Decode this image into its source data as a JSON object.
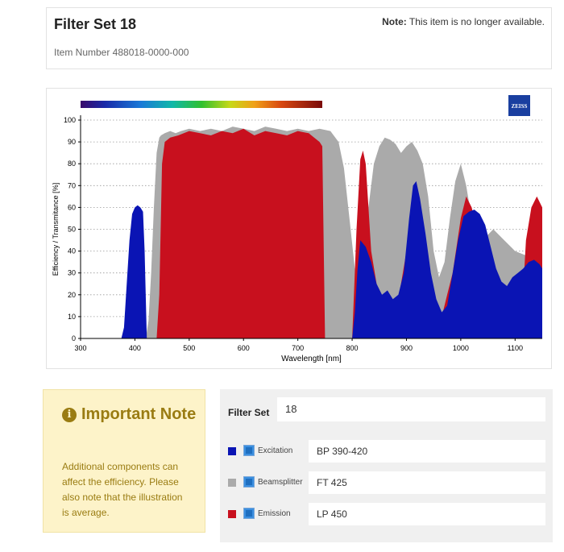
{
  "header": {
    "title": "Filter Set 18",
    "item_number": "Item Number 488018-0000-000",
    "note_label": "Note:",
    "note_text": "This item is no longer available."
  },
  "chart_data": {
    "type": "area",
    "logo": "ZEISS",
    "xlabel": "Wavelength [nm]",
    "ylabel": "Efficiency / Transmitance [%]",
    "xlim": [
      300,
      1150
    ],
    "ylim": [
      0,
      100
    ],
    "x_ticks": [
      300,
      400,
      500,
      600,
      700,
      800,
      900,
      1000,
      1100
    ],
    "y_ticks": [
      0,
      10,
      20,
      30,
      40,
      50,
      60,
      70,
      80,
      90,
      100
    ],
    "grid": "horizontal dotted",
    "spectrum_bar_range": [
      300,
      745
    ],
    "series": [
      {
        "name": "Beamsplitter",
        "color": "#aaaaaa",
        "x": [
          300,
          420,
          425,
          430,
          435,
          440,
          445,
          448,
          455,
          465,
          475,
          485,
          500,
          520,
          540,
          560,
          580,
          600,
          620,
          640,
          660,
          680,
          700,
          720,
          740,
          760,
          775,
          785,
          795,
          805,
          812,
          820,
          830,
          840,
          850,
          860,
          870,
          880,
          890,
          900,
          910,
          920,
          930,
          940,
          950,
          960,
          970,
          980,
          990,
          1000,
          1010,
          1020,
          1040,
          1060,
          1080,
          1100,
          1120,
          1150
        ],
        "y": [
          0,
          0,
          8,
          30,
          60,
          85,
          92,
          93,
          94,
          95,
          94,
          95,
          96,
          95,
          96,
          95,
          97,
          96,
          95,
          97,
          96,
          95,
          96,
          95,
          96,
          95,
          90,
          78,
          55,
          32,
          30,
          45,
          60,
          80,
          88,
          92,
          91,
          89,
          85,
          88,
          90,
          86,
          80,
          65,
          40,
          28,
          35,
          55,
          72,
          80,
          70,
          55,
          45,
          50,
          45,
          40,
          38,
          35
        ]
      },
      {
        "name": "Emission",
        "color": "#c8101e",
        "x": [
          300,
          440,
          445,
          450,
          455,
          465,
          480,
          500,
          520,
          540,
          560,
          580,
          600,
          620,
          640,
          660,
          680,
          700,
          720,
          730,
          740,
          745,
          750,
          800,
          808,
          815,
          820,
          825,
          830,
          835,
          845,
          860,
          870,
          880,
          890,
          900,
          940,
          955,
          965,
          975,
          985,
          1000,
          1010,
          1020,
          1080,
          1110,
          1120,
          1130,
          1140,
          1150
        ],
        "y": [
          0,
          0,
          20,
          80,
          90,
          92,
          93,
          95,
          94,
          93,
          95,
          94,
          96,
          93,
          95,
          94,
          93,
          95,
          94,
          92,
          90,
          88,
          0,
          0,
          50,
          82,
          86,
          80,
          60,
          40,
          25,
          15,
          8,
          12,
          25,
          40,
          0,
          0,
          10,
          20,
          30,
          55,
          65,
          60,
          0,
          0,
          45,
          60,
          65,
          60
        ]
      },
      {
        "name": "Excitation",
        "color": "#0a14b4",
        "x": [
          300,
          375,
          380,
          385,
          390,
          395,
          400,
          405,
          410,
          415,
          418,
          422,
          800,
          805,
          810,
          815,
          825,
          835,
          845,
          855,
          865,
          875,
          885,
          895,
          905,
          912,
          918,
          925,
          935,
          945,
          955,
          965,
          975,
          985,
          995,
          1005,
          1015,
          1025,
          1035,
          1045,
          1055,
          1065,
          1075,
          1085,
          1095,
          1105,
          1115,
          1125,
          1135,
          1145,
          1150
        ],
        "y": [
          0,
          0,
          5,
          25,
          45,
          57,
          60,
          61,
          60,
          58,
          40,
          0,
          0,
          12,
          32,
          45,
          42,
          35,
          25,
          20,
          22,
          18,
          20,
          30,
          55,
          70,
          72,
          64,
          48,
          30,
          18,
          12,
          15,
          30,
          45,
          56,
          58,
          59,
          57,
          52,
          42,
          32,
          26,
          24,
          28,
          30,
          32,
          35,
          36,
          34,
          32
        ]
      }
    ]
  },
  "important_note": {
    "icon": "info-icon",
    "title": "Important Note",
    "body": "Additional components can affect the efficiency. Please also note that the illustration is average."
  },
  "filter_set": {
    "label": "Filter Set",
    "value": "18",
    "components": [
      {
        "name": "Excitation",
        "value": "BP 390-420",
        "color": "#0a14b4"
      },
      {
        "name": "Beamsplitter",
        "value": "FT 425",
        "color": "#aaaaaa"
      },
      {
        "name": "Emission",
        "value": "LP 450",
        "color": "#c8101e"
      }
    ]
  }
}
